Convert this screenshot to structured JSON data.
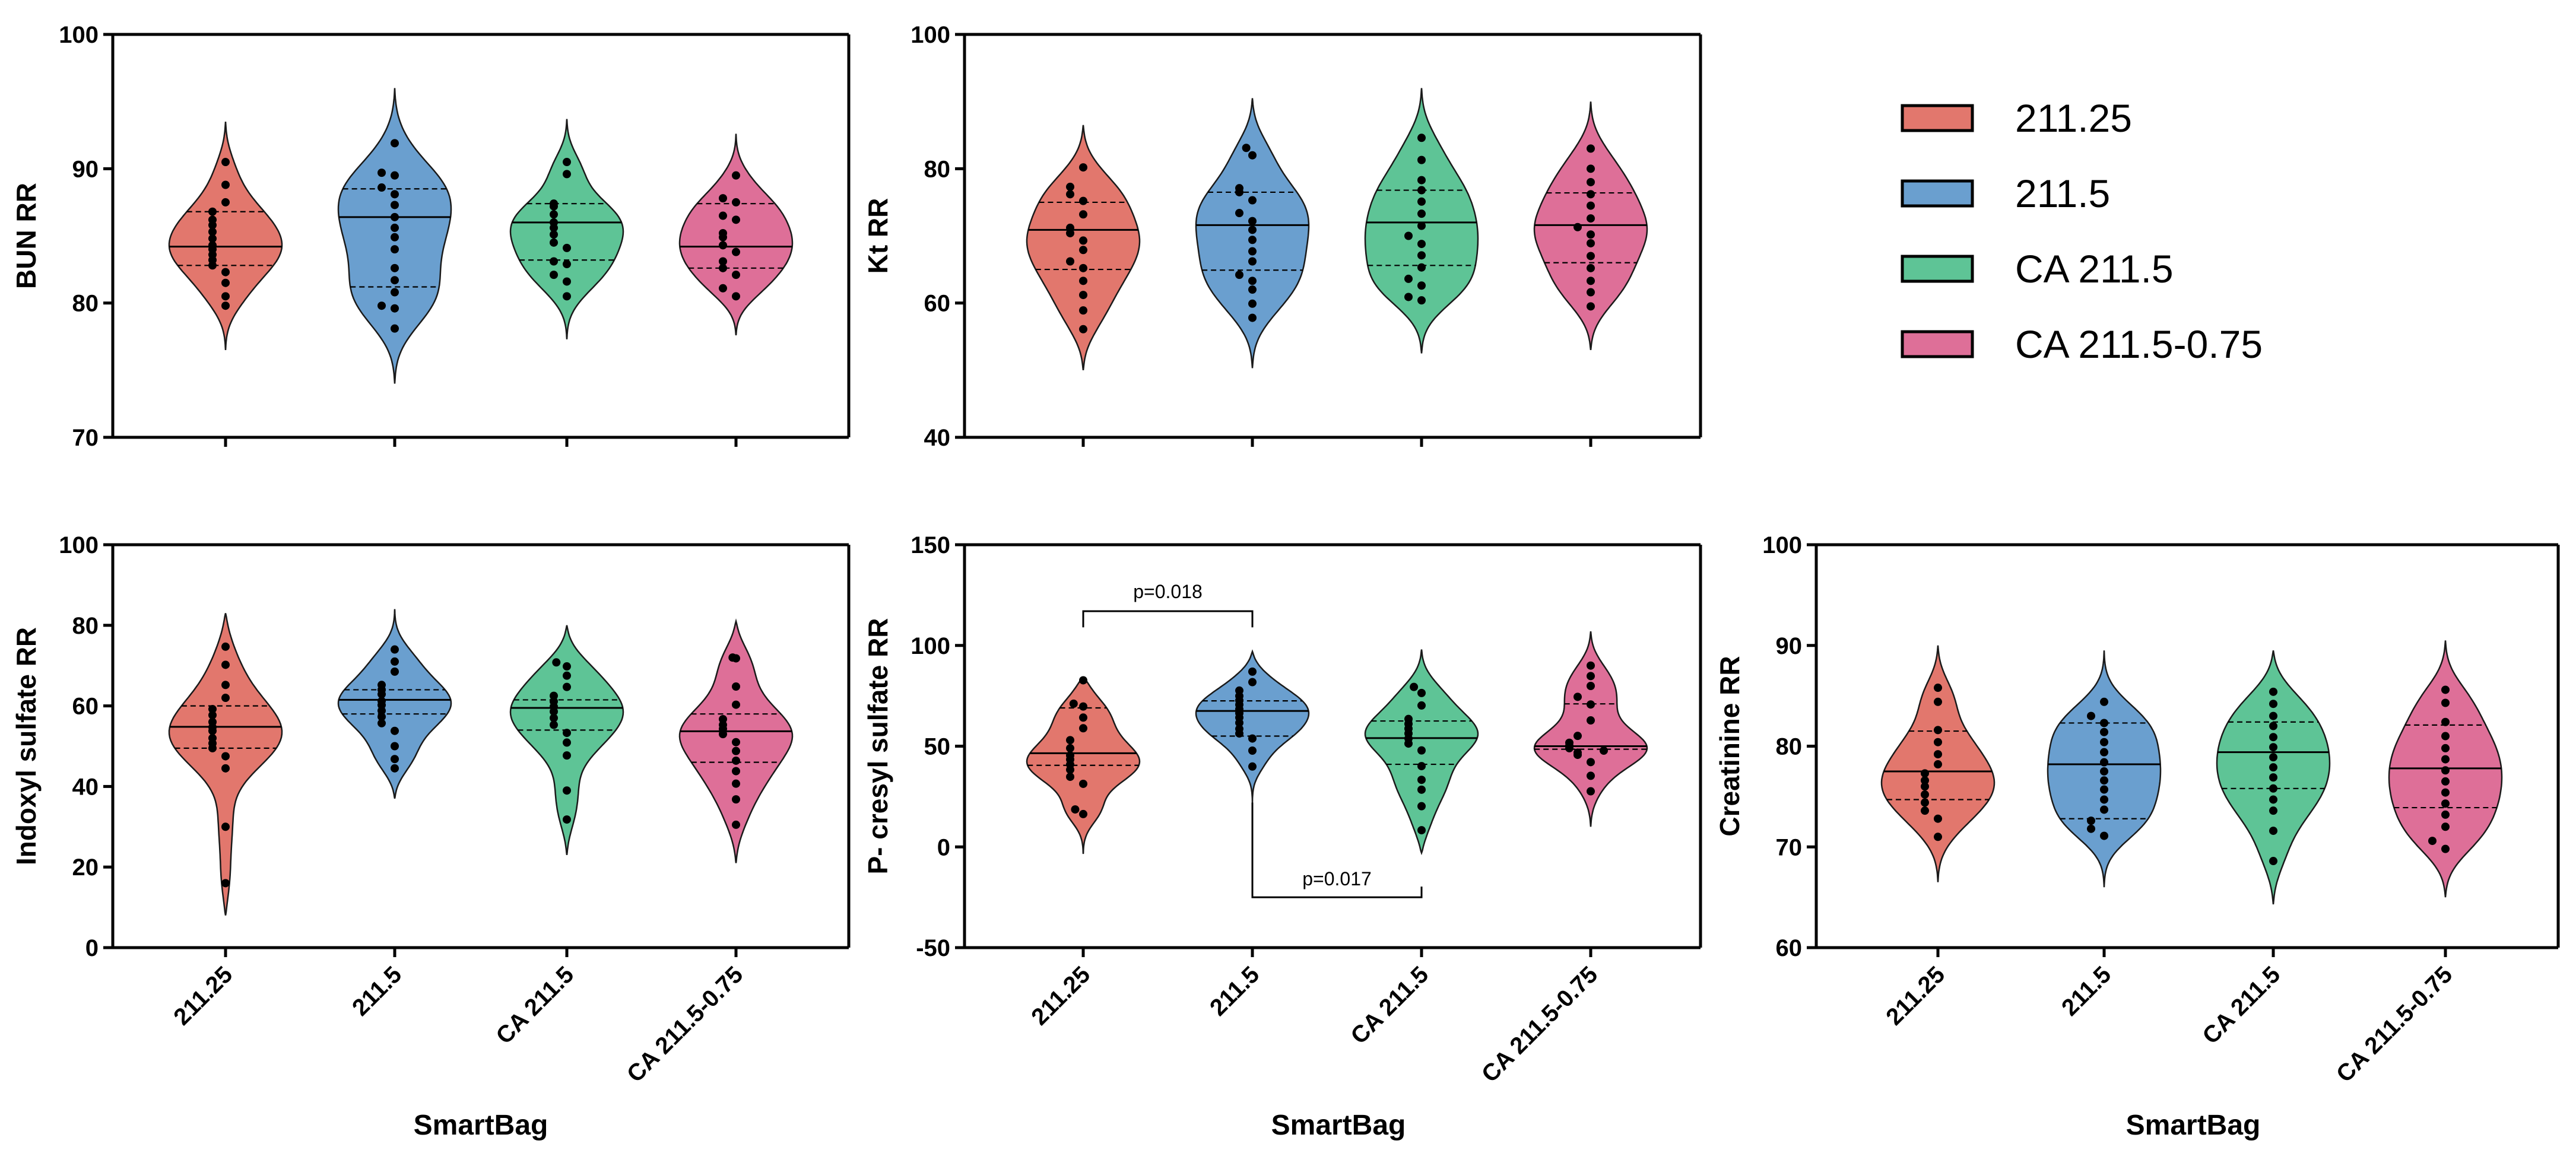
{
  "chart_data": [
    {
      "type": "violin",
      "ylabel": "BUN RR",
      "ylim": [
        70,
        100
      ],
      "yticks": [
        70,
        80,
        90,
        100
      ],
      "xlabel": "",
      "categories": [
        "211.25",
        "211.5",
        "CA 211.5",
        "CA 211.5-0.75"
      ],
      "series": [
        {
          "name": "211.25",
          "median": 84.2,
          "q1": 82.8,
          "q3": 86.8,
          "range": [
            76.5,
            93.5
          ],
          "points": [
            90.5,
            88.8,
            87.5,
            86.8,
            86.2,
            85.8,
            85.3,
            84.8,
            84.3,
            84.0,
            83.6,
            83.2,
            82.8,
            82.3,
            81.5,
            80.5,
            79.8
          ]
        },
        {
          "name": "211.5",
          "median": 86.4,
          "q1": 81.2,
          "q3": 88.5,
          "range": [
            74.0,
            96.0
          ],
          "points": [
            91.9,
            89.7,
            89.5,
            88.6,
            88.1,
            87.3,
            86.4,
            85.6,
            84.9,
            84.0,
            82.6,
            81.7,
            80.8,
            79.8,
            79.6,
            78.1
          ]
        },
        {
          "name": "CA 211.5",
          "median": 86.0,
          "q1": 83.2,
          "q3": 87.4,
          "range": [
            77.3,
            93.7
          ],
          "points": [
            90.5,
            89.6,
            87.4,
            87.2,
            86.6,
            86.0,
            85.6,
            85.1,
            84.5,
            84.1,
            83.1,
            82.9,
            82.1,
            81.6,
            80.5
          ]
        },
        {
          "name": "CA 211.5-0.75",
          "median": 84.2,
          "q1": 82.6,
          "q3": 87.4,
          "range": [
            77.6,
            92.6
          ],
          "points": [
            89.5,
            87.8,
            87.5,
            86.5,
            86.2,
            85.2,
            84.9,
            84.3,
            83.8,
            83.1,
            82.6,
            82.1,
            81.1,
            80.5
          ]
        }
      ]
    },
    {
      "type": "violin",
      "ylabel": "Kt RR",
      "ylim": [
        40,
        100
      ],
      "yticks": [
        40,
        60,
        80,
        100
      ],
      "xlabel": "",
      "categories": [
        "211.25",
        "211.5",
        "CA 211.5",
        "CA 211.5-0.75"
      ],
      "series": [
        {
          "name": "211.25",
          "median": 70.9,
          "q1": 65.0,
          "q3": 75.0,
          "range": [
            50.0,
            86.5
          ],
          "points": [
            80.2,
            77.3,
            76.2,
            75.2,
            73.2,
            71.2,
            70.4,
            69.3,
            67.9,
            66.2,
            65.2,
            63.3,
            61.2,
            58.9,
            56.1
          ]
        },
        {
          "name": "211.5",
          "median": 71.6,
          "q1": 64.9,
          "q3": 76.5,
          "range": [
            50.3,
            90.5
          ],
          "points": [
            83.1,
            82.0,
            77.1,
            76.5,
            75.3,
            73.4,
            72.2,
            70.9,
            69.4,
            67.7,
            66.2,
            64.2,
            63.3,
            62.0,
            59.9,
            57.8
          ]
        },
        {
          "name": "CA 211.5",
          "median": 72.0,
          "q1": 65.6,
          "q3": 76.8,
          "range": [
            52.5,
            92.0
          ],
          "points": [
            84.6,
            81.3,
            78.3,
            76.8,
            75.1,
            73.3,
            71.5,
            70.0,
            68.8,
            67.1,
            65.3,
            63.6,
            62.6,
            60.9,
            60.4
          ]
        },
        {
          "name": "CA 211.5-0.75",
          "median": 71.6,
          "q1": 66.0,
          "q3": 76.4,
          "range": [
            53.0,
            90.0
          ],
          "points": [
            83.0,
            80.0,
            78.0,
            76.2,
            74.5,
            72.6,
            71.3,
            70.2,
            68.9,
            67.0,
            65.2,
            63.3,
            61.6,
            59.5
          ]
        }
      ]
    },
    {
      "type": "violin",
      "ylabel": "Indoxyl sulfate RR",
      "ylim": [
        0,
        100
      ],
      "yticks": [
        0,
        20,
        40,
        60,
        80,
        100
      ],
      "xlabel": "SmartBag",
      "categories": [
        "211.25",
        "211.5",
        "CA 211.5",
        "CA 211.5-0.75"
      ],
      "series": [
        {
          "name": "211.25",
          "median": 54.8,
          "q1": 49.5,
          "q3": 60.0,
          "range": [
            8.0,
            83.0
          ],
          "points": [
            74.7,
            70.2,
            65.2,
            62.0,
            59.2,
            57.7,
            56.0,
            54.7,
            53.8,
            52.0,
            50.7,
            49.5,
            47.5,
            44.5,
            30.0,
            16.0
          ]
        },
        {
          "name": "211.5",
          "median": 61.5,
          "q1": 58.0,
          "q3": 64.0,
          "range": [
            37.0,
            84.0
          ],
          "points": [
            74.0,
            71.0,
            68.5,
            65.2,
            64.0,
            62.9,
            61.2,
            60.2,
            58.8,
            57.3,
            55.7,
            53.8,
            50.0,
            46.8,
            44.5
          ]
        },
        {
          "name": "CA 211.5",
          "median": 59.5,
          "q1": 54.0,
          "q3": 61.5,
          "range": [
            23.0,
            80.0
          ],
          "points": [
            70.8,
            69.8,
            67.5,
            64.7,
            62.5,
            61.1,
            59.8,
            58.6,
            57.0,
            55.3,
            53.3,
            50.9,
            47.7,
            39.0,
            31.8
          ]
        },
        {
          "name": "CA 211.5-0.75",
          "median": 53.7,
          "q1": 46.0,
          "q3": 58.0,
          "range": [
            21.0,
            81.0
          ],
          "points": [
            72.0,
            71.8,
            64.8,
            60.3,
            56.7,
            55.3,
            54.3,
            53.0,
            51.0,
            48.8,
            46.4,
            43.8,
            40.7,
            36.8,
            30.5
          ]
        }
      ]
    },
    {
      "type": "violin",
      "ylabel": "P- cresyl sulfate RR",
      "ylim": [
        -50,
        150
      ],
      "yticks": [
        -50,
        0,
        50,
        100,
        150
      ],
      "xlabel": "SmartBag",
      "categories": [
        "211.25",
        "211.5",
        "CA 211.5",
        "CA 211.5-0.75"
      ],
      "series": [
        {
          "name": "211.25",
          "median": 46.5,
          "q1": 40.5,
          "q3": 69.0,
          "range": [
            -3.5,
            84.0
          ],
          "points": [
            82.7,
            71.1,
            69.7,
            64.2,
            58.9,
            53.0,
            49.0,
            45.4,
            43.4,
            40.9,
            38.3,
            34.8,
            31.3,
            18.6,
            16.3
          ]
        },
        {
          "name": "211.5",
          "median": 67.5,
          "q1": 55.0,
          "q3": 72.5,
          "range": [
            22.0,
            97.0
          ],
          "points": [
            87.0,
            81.8,
            77.6,
            74.9,
            72.7,
            70.6,
            68.4,
            66.4,
            64.2,
            61.6,
            58.6,
            56.3,
            53.8,
            47.8,
            39.9
          ]
        },
        {
          "name": "CA 211.5",
          "median": 54.0,
          "q1": 41.0,
          "q3": 62.5,
          "range": [
            -3.0,
            98.0
          ],
          "points": [
            79.4,
            76.4,
            70.2,
            63.5,
            61.1,
            58.7,
            56.3,
            53.8,
            51.3,
            47.9,
            40.1,
            33.3,
            28.4,
            20.2,
            8.3
          ]
        },
        {
          "name": "CA 211.5-0.75",
          "median": 50.0,
          "q1": 48.5,
          "q3": 71.0,
          "range": [
            10.0,
            107.0
          ],
          "points": [
            90.0,
            84.8,
            79.9,
            74.5,
            70.7,
            62.8,
            55.1,
            51.7,
            50.2,
            49.0,
            47.8,
            46.8,
            45.7,
            42.1,
            35.3,
            27.6
          ]
        }
      ],
      "annotations": [
        {
          "text": "p=0.018",
          "from": "211.25",
          "to": "211.5",
          "y": 117
        },
        {
          "text": "p=0.017",
          "from": "211.5",
          "to": "CA 211.5",
          "y": -25
        }
      ]
    },
    {
      "type": "violin",
      "ylabel": "Creatinine RR",
      "ylim": [
        60,
        100
      ],
      "yticks": [
        60,
        70,
        80,
        90,
        100
      ],
      "xlabel": "SmartBag",
      "categories": [
        "211.25",
        "211.5",
        "CA 211.5",
        "CA 211.5-0.75"
      ],
      "series": [
        {
          "name": "211.25",
          "median": 77.5,
          "q1": 74.7,
          "q3": 81.5,
          "range": [
            66.5,
            90.0
          ],
          "points": [
            85.8,
            84.4,
            81.6,
            80.4,
            79.2,
            78.2,
            77.3,
            76.6,
            76.0,
            75.2,
            74.4,
            73.6,
            72.8,
            71.0
          ]
        },
        {
          "name": "211.5",
          "median": 78.2,
          "q1": 72.8,
          "q3": 82.3,
          "range": [
            66.0,
            89.5
          ],
          "points": [
            84.4,
            83.0,
            82.3,
            81.4,
            80.4,
            79.4,
            78.4,
            77.5,
            76.6,
            75.7,
            74.7,
            73.7,
            72.6,
            71.8,
            71.1
          ]
        },
        {
          "name": "CA 211.5",
          "median": 79.4,
          "q1": 75.8,
          "q3": 82.4,
          "range": [
            64.3,
            89.5
          ],
          "points": [
            85.4,
            84.2,
            83.0,
            82.0,
            80.9,
            79.9,
            78.9,
            77.9,
            76.9,
            75.8,
            74.7,
            73.6,
            71.6,
            68.6
          ]
        },
        {
          "name": "CA 211.5-0.75",
          "median": 77.8,
          "q1": 73.9,
          "q3": 82.1,
          "range": [
            65.0,
            90.5
          ],
          "points": [
            85.6,
            84.3,
            82.4,
            81.0,
            79.8,
            78.7,
            77.6,
            76.5,
            75.4,
            74.3,
            73.2,
            72.0,
            70.6,
            69.8
          ]
        }
      ]
    }
  ],
  "legend": [
    {
      "label": "211.25",
      "color": "#E2776D"
    },
    {
      "label": "211.5",
      "color": "#6A9FCF"
    },
    {
      "label": "CA 211.5",
      "color": "#5EC496"
    },
    {
      "label": "CA 211.5-0.75",
      "color": "#DE6F98"
    }
  ]
}
